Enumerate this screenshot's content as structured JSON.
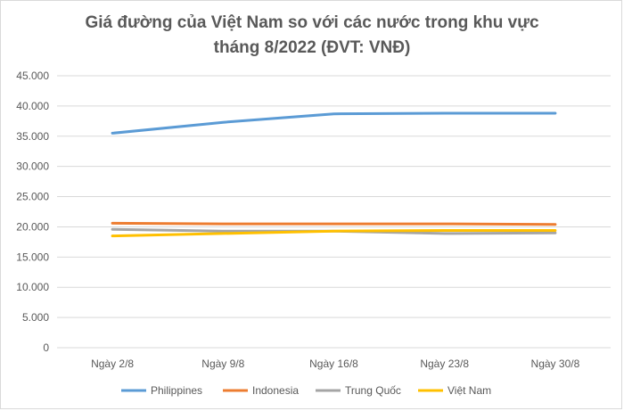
{
  "chart_data": {
    "type": "line",
    "title_lines": [
      "Giá đường của Việt Nam so với các nước trong khu vực",
      "tháng 8/2022 (ĐVT: VNĐ)"
    ],
    "categories": [
      "Ngày 2/8",
      "Ngày 9/8",
      "Ngày 16/8",
      "Ngày 23/8",
      "Ngày 30/8"
    ],
    "ylim": [
      0,
      45000
    ],
    "yticks": [
      0,
      5000,
      10000,
      15000,
      20000,
      25000,
      30000,
      35000,
      40000,
      45000
    ],
    "ytick_labels": [
      "0",
      "5.000",
      "10.000",
      "15.000",
      "20.000",
      "25.000",
      "30.000",
      "35.000",
      "40.000",
      "45.000"
    ],
    "grid": true,
    "legend_position": "bottom",
    "series": [
      {
        "name": "Philippines",
        "color": "#5b9bd5",
        "values": [
          35500,
          37300,
          38700,
          38800,
          38800
        ]
      },
      {
        "name": "Indonesia",
        "color": "#ed7d31",
        "values": [
          20600,
          20500,
          20500,
          20500,
          20400
        ]
      },
      {
        "name": "Trung Quốc",
        "color": "#a5a5a5",
        "values": [
          19600,
          19300,
          19300,
          18900,
          19000
        ]
      },
      {
        "name": "Việt Nam",
        "color": "#ffc000",
        "values": [
          18500,
          18900,
          19300,
          19400,
          19400
        ]
      }
    ]
  }
}
